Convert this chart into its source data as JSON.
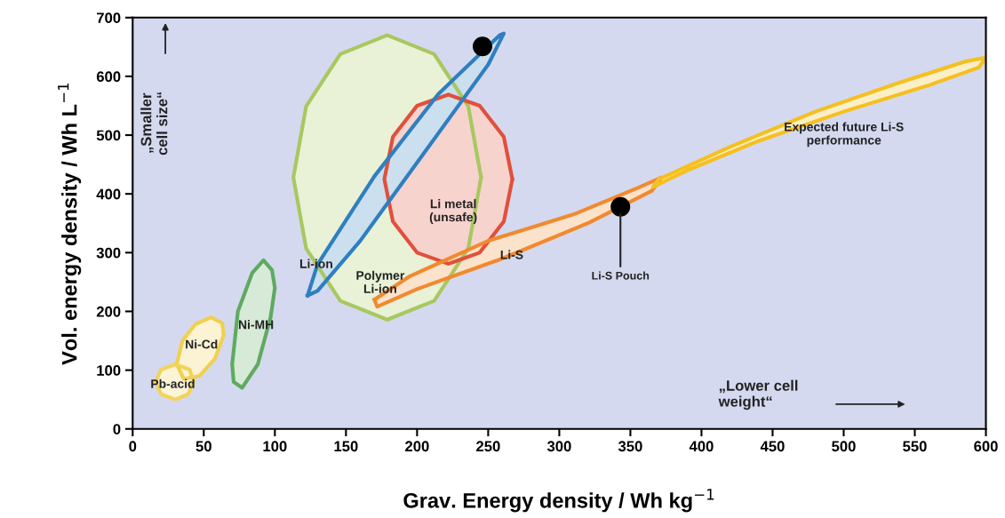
{
  "chart_data": {
    "type": "area",
    "xlabel": "Grav. Energy density / Wh kg$^{−1}$",
    "ylabel": "Vol. energy density / Wh L$^{−1}$",
    "xlim": [
      0,
      600
    ],
    "ylim": [
      0,
      700
    ],
    "xticks": [
      0,
      50,
      100,
      150,
      200,
      250,
      300,
      350,
      400,
      450,
      500,
      550,
      600
    ],
    "yticks": [
      0,
      100,
      200,
      300,
      400,
      500,
      600,
      700
    ],
    "grid": false,
    "series": [
      {
        "name": "Polymer\nLi-ion",
        "color": "#a8c860",
        "x": [
          245,
          236,
          212,
          179,
          146,
          122,
          113,
          122,
          146,
          179,
          212,
          236,
          245
        ],
        "values": [
          428,
          549,
          638,
          670,
          638,
          549,
          428,
          307,
          218,
          186,
          218,
          307,
          428
        ]
      },
      {
        "name": "Li metal\n(unsafe)",
        "color": "#e0503c",
        "x": [
          267,
          261,
          244,
          222,
          200,
          183,
          177,
          183,
          200,
          222,
          244,
          261,
          267
        ],
        "values": [
          425,
          497,
          550,
          569,
          550,
          497,
          425,
          353,
          300,
          281,
          300,
          353,
          425
        ]
      },
      {
        "name": "Li-ion",
        "color": "#2f7fc0",
        "x": [
          123,
          130,
          170,
          215,
          258,
          261,
          250,
          205,
          160,
          130,
          123
        ],
        "values": [
          227,
          280,
          430,
          570,
          670,
          673,
          620,
          470,
          320,
          235,
          227
        ]
      },
      {
        "name": "Li-S",
        "color": "#f08a30",
        "x": [
          170,
          195,
          250,
          310,
          355,
          372,
          365,
          320,
          260,
          200,
          172,
          170
        ],
        "values": [
          220,
          260,
          320,
          365,
          410,
          428,
          405,
          350,
          290,
          238,
          208,
          220
        ]
      },
      {
        "name": "Expected future Li-S\nperformance",
        "color": "#f5c020",
        "x": [
          370,
          420,
          480,
          540,
          585,
          600,
          595,
          560,
          500,
          440,
          390,
          366,
          370
        ],
        "values": [
          425,
          480,
          540,
          590,
          625,
          632,
          615,
          585,
          540,
          490,
          440,
          412,
          425
        ]
      },
      {
        "name": "Ni-MH",
        "color": "#5faa60",
        "x": [
          70,
          74,
          84,
          92,
          98,
          100,
          97,
          88,
          77,
          71,
          70
        ],
        "values": [
          110,
          200,
          265,
          287,
          270,
          240,
          190,
          110,
          70,
          80,
          110
        ]
      },
      {
        "name": "Ni-Cd",
        "color": "#f0d050",
        "x": [
          31,
          35,
          44,
          55,
          63,
          64,
          58,
          47,
          36,
          31
        ],
        "values": [
          110,
          150,
          178,
          190,
          180,
          160,
          120,
          90,
          85,
          110
        ]
      },
      {
        "name": "Pb-acid",
        "color": "#f2d35a",
        "x": [
          16,
          20,
          30,
          40,
          43,
          39,
          30,
          20,
          16
        ],
        "values": [
          80,
          101,
          110,
          101,
          80,
          59,
          50,
          59,
          80
        ]
      },
      {
        "type": "scatter",
        "color": "#000000",
        "x": [
          246,
          343
        ],
        "values": [
          651,
          378
        ]
      }
    ],
    "annotations": [
      "„Smaller\ncell size“",
      "„Lower cell\nweight“",
      {
        "text": "Li-S Pouch",
        "x": 343,
        "y": 378
      }
    ]
  }
}
